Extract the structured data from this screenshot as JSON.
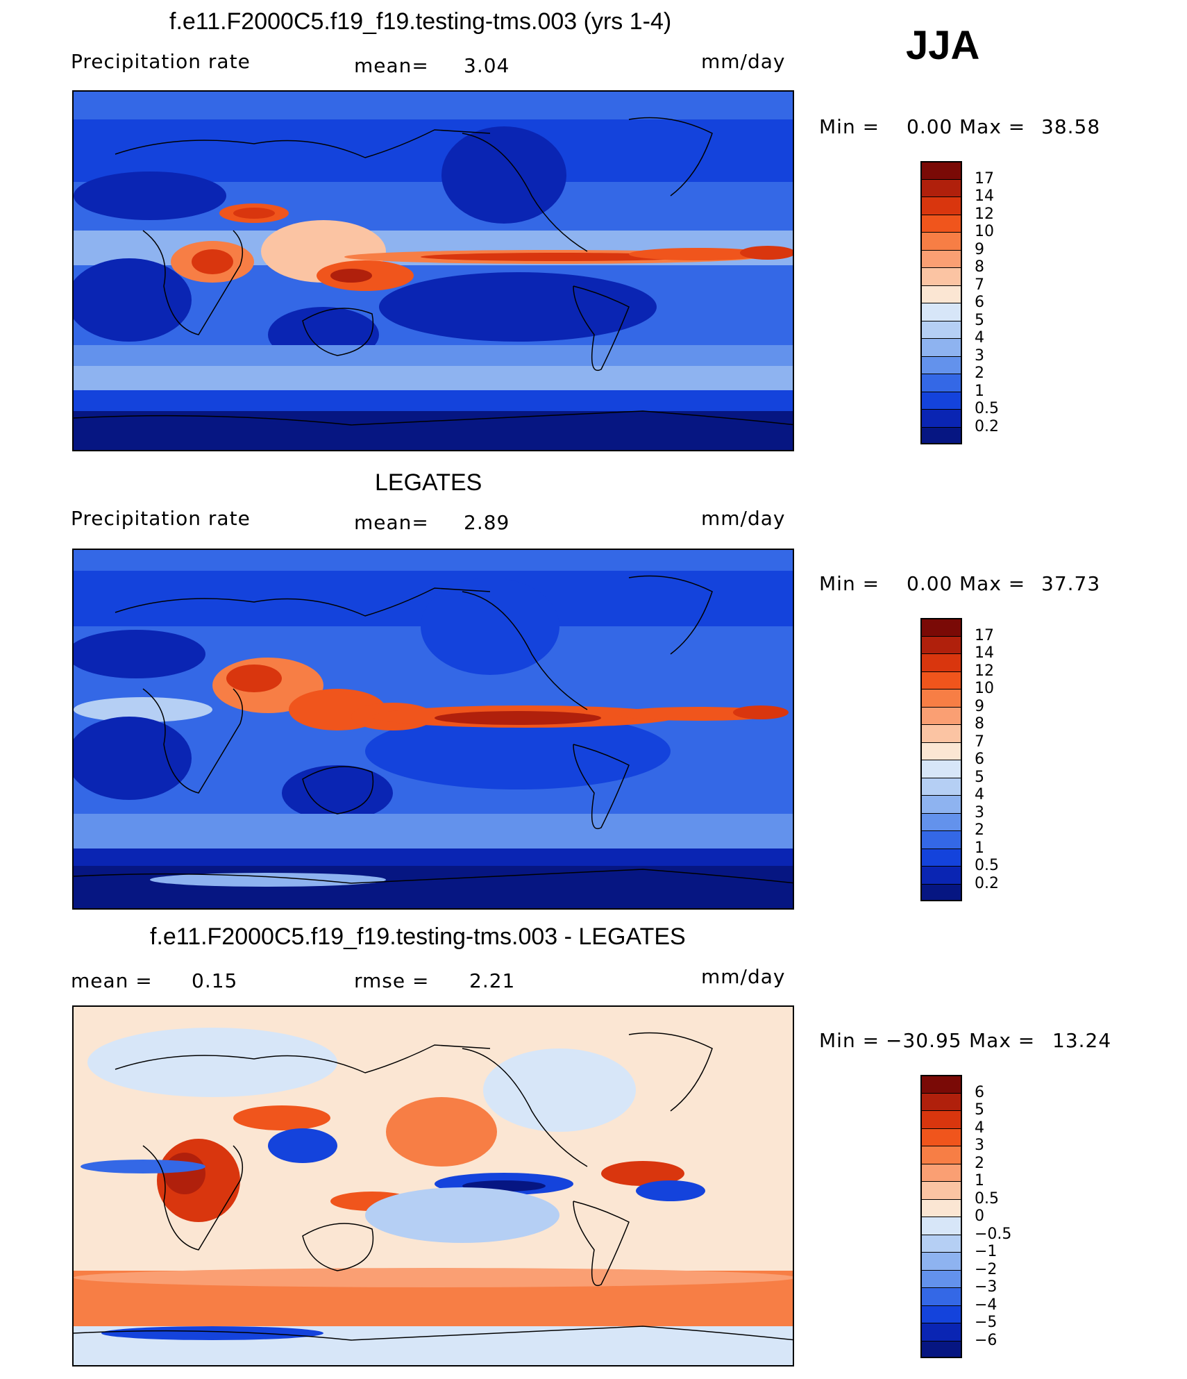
{
  "season": "JJA",
  "panels": [
    {
      "title": "f.e11.F2000C5.f19_f19.testing-tms.003 (yrs 1-4)",
      "left_label": "Precipitation  rate",
      "mid_label": "mean=",
      "mid_value": "3.04",
      "right_label": "",
      "units": "mm/day",
      "min_label": "Min  =",
      "min_value": "0.00",
      "max_label": "Max  =",
      "max_value": "38.58",
      "colorbar": {
        "ticks": [
          "17",
          "14",
          "12",
          "10",
          "9",
          "8",
          "7",
          "6",
          "5",
          "4",
          "3",
          "2",
          "1",
          "0.5",
          "0.2"
        ],
        "colors": [
          "#7a0a06",
          "#b0200c",
          "#d9360e",
          "#f0551c",
          "#f77e45",
          "#fa9f73",
          "#fbc4a3",
          "#fbe6d3",
          "#d7e6f8",
          "#b5cff4",
          "#8eb3f0",
          "#6392ec",
          "#3468e6",
          "#1443dc",
          "#0a25b3",
          "#061682"
        ]
      }
    },
    {
      "title": "LEGATES",
      "left_label": "Precipitation  rate",
      "mid_label": "mean=",
      "mid_value": "2.89",
      "units": "mm/day",
      "min_label": "Min  =",
      "min_value": "0.00",
      "max_label": "Max  =",
      "max_value": "37.73",
      "colorbar": {
        "ticks": [
          "17",
          "14",
          "12",
          "10",
          "9",
          "8",
          "7",
          "6",
          "5",
          "4",
          "3",
          "2",
          "1",
          "0.5",
          "0.2"
        ],
        "colors": [
          "#7a0a06",
          "#b0200c",
          "#d9360e",
          "#f0551c",
          "#f77e45",
          "#fa9f73",
          "#fbc4a3",
          "#fbe6d3",
          "#d7e6f8",
          "#b5cff4",
          "#8eb3f0",
          "#6392ec",
          "#3468e6",
          "#1443dc",
          "#0a25b3",
          "#061682"
        ]
      }
    },
    {
      "title": "f.e11.F2000C5.f19_f19.testing-tms.003 - LEGATES",
      "left_label": "mean  =",
      "left_value": "0.15",
      "mid_label": "rmse  =",
      "mid_value": "2.21",
      "units": "mm/day",
      "min_label": "Min  =",
      "min_value": "−30.95",
      "max_label": "Max  =",
      "max_value": "13.24",
      "colorbar": {
        "ticks": [
          "6",
          "5",
          "4",
          "3",
          "2",
          "1",
          "0.5",
          "0",
          "−0.5",
          "−1",
          "−2",
          "−3",
          "−4",
          "−5",
          "−6"
        ],
        "colors": [
          "#7a0a06",
          "#b0200c",
          "#d9360e",
          "#f0551c",
          "#f77e45",
          "#fa9f73",
          "#fbc4a3",
          "#fbe6d3",
          "#d7e6f8",
          "#b5cff4",
          "#8eb3f0",
          "#6392ec",
          "#3468e6",
          "#1443dc",
          "#0a25b3",
          "#061682"
        ]
      }
    }
  ]
}
